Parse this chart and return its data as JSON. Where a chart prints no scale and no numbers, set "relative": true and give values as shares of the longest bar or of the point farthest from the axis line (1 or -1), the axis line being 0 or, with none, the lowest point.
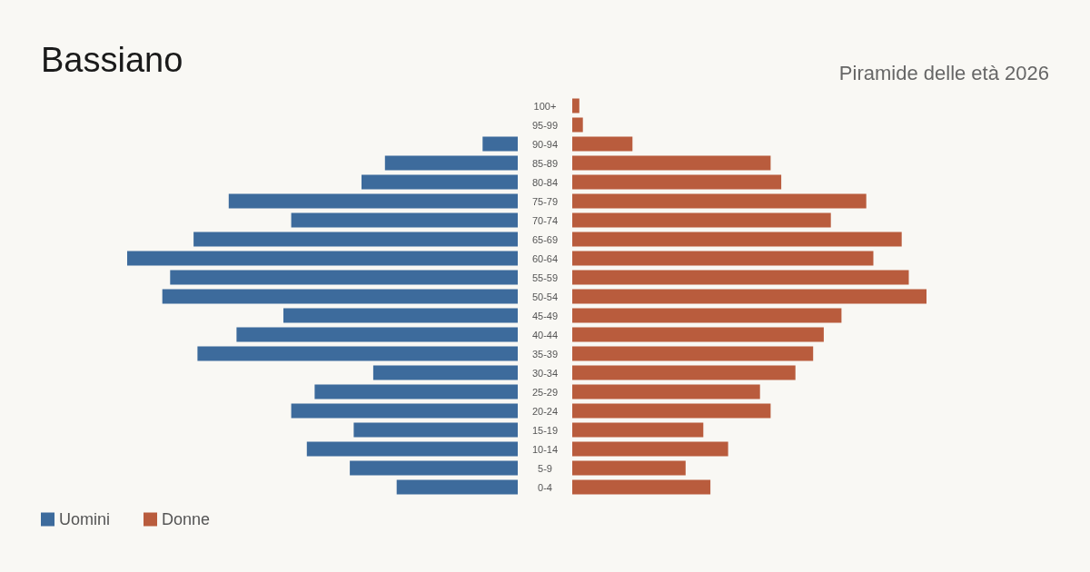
{
  "chart_data": [
    {
      "type": "bar",
      "orientation": "horizontal",
      "relative": true,
      "title": "Bassiano",
      "tick_labels": "y",
      "categories": [
        "100+",
        "95-99",
        "90-94",
        "85-89",
        "80-84",
        "75-79",
        "70-74",
        "65-69",
        "60-64",
        "55-59",
        "50-54",
        "45-49",
        "40-44",
        "35-39",
        "30-34",
        "25-29",
        "20-24",
        "15-19",
        "10-14",
        "5-9",
        "0-4"
      ],
      "series": [
        {
          "name": "Uomini",
          "color": "#3d6b9c",
          "values": [
            0,
            0,
            -0.09,
            -0.34,
            -0.4,
            -0.74,
            -0.58,
            -0.83,
            -1,
            -0.89,
            -0.91,
            -0.6,
            -0.72,
            -0.82,
            -0.37,
            -0.52,
            -0.58,
            -0.42,
            -0.54,
            -0.43,
            -0.31
          ]
        }
      ],
      "legend": "bottom left",
      "grid": false
    },
    {
      "type": "bar",
      "orientation": "horizontal",
      "relative": true,
      "subtitle": "Piramide delle età 2026",
      "categories": [
        null,
        null,
        null,
        null,
        null,
        null,
        null,
        null,
        null,
        null,
        null,
        null,
        null,
        null,
        null,
        null,
        null,
        null,
        null,
        null,
        null
      ],
      "series": [
        {
          "name": "Donne",
          "color": "#b95c3d",
          "values": [
            0.02,
            0.03,
            0.17,
            0.56,
            0.59,
            0.83,
            0.73,
            0.93,
            0.85,
            0.95,
            1,
            0.76,
            0.71,
            0.68,
            0.63,
            0.53,
            0.56,
            0.37,
            0.44,
            0.32,
            0.39
          ]
        }
      ],
      "legend": "bottom left",
      "grid": false
    }
  ]
}
